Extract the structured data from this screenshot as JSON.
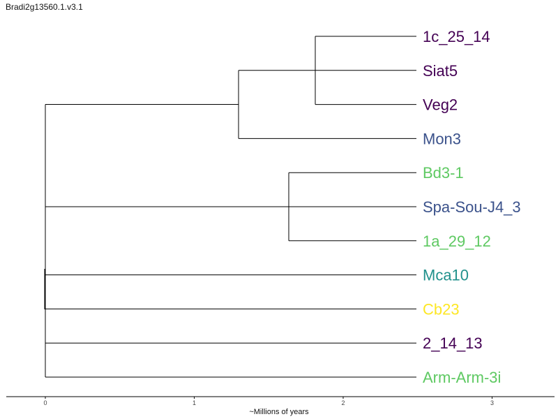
{
  "title": "Bradi2g13560.1.v3.1",
  "x_axis": {
    "label": "~Millions of years",
    "ticks": [
      "0",
      "1",
      "2",
      "3"
    ]
  },
  "tree": {
    "leaves": [
      {
        "id": "l1",
        "label": "1c_25_14",
        "color": "#440154"
      },
      {
        "id": "l2",
        "label": "Siat5",
        "color": "#440154"
      },
      {
        "id": "l3",
        "label": "Veg2",
        "color": "#440154"
      },
      {
        "id": "l4",
        "label": "Mon3",
        "color": "#3b528b"
      },
      {
        "id": "l5",
        "label": "Bd3-1",
        "color": "#5ec962"
      },
      {
        "id": "l6",
        "label": "Spa-Sou-J4_3",
        "color": "#3b528b"
      },
      {
        "id": "l7",
        "label": "1a_29_12",
        "color": "#5ec962"
      },
      {
        "id": "l8",
        "label": "Mca10",
        "color": "#21918c"
      },
      {
        "id": "l9",
        "label": "Cb23",
        "color": "#fde725"
      },
      {
        "id": "l10",
        "label": "2_14_13",
        "color": "#440154"
      },
      {
        "id": "l11",
        "label": "Arm-Arm-3i",
        "color": "#5ec962"
      }
    ],
    "branch_color": "#000000"
  }
}
